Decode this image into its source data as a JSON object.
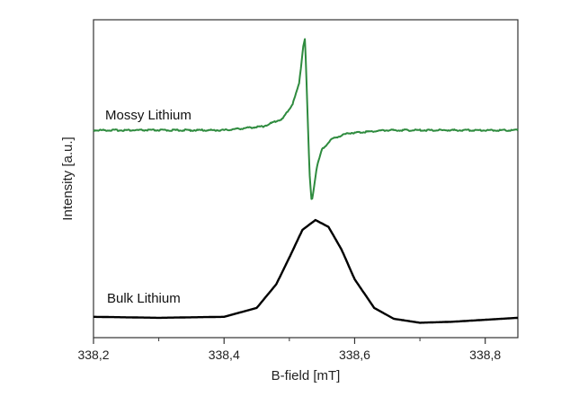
{
  "chart_data": {
    "type": "line",
    "title": "",
    "xlabel": "B-field [mT]",
    "ylabel": "Intensity [a.u.]",
    "xlim": [
      338.2,
      338.85
    ],
    "x_ticks": [
      338.2,
      338.4,
      338.6,
      338.8
    ],
    "x_tick_labels": [
      "338,2",
      "338,4",
      "338,6",
      "338,8"
    ],
    "y_ticks_shown": false,
    "grid": false,
    "legend": "none (series labelled directly on the plot)",
    "series": [
      {
        "name": "Mossy Lithium",
        "color": "#2e8b3e",
        "x": [
          338.2,
          338.3,
          338.4,
          338.46,
          338.49,
          338.505,
          338.515,
          338.521,
          338.524,
          338.527,
          338.531,
          338.534,
          338.537,
          338.542,
          338.55,
          338.565,
          338.59,
          338.65,
          338.75,
          338.85
        ],
        "y": [
          0,
          0,
          0,
          0.04,
          0.12,
          0.27,
          0.48,
          0.86,
          0.95,
          0.35,
          -0.45,
          -0.74,
          -0.62,
          -0.38,
          -0.2,
          -0.09,
          -0.03,
          0,
          0,
          0
        ]
      },
      {
        "name": "Bulk Lithium",
        "color": "#000000",
        "x": [
          338.2,
          338.3,
          338.4,
          338.45,
          338.48,
          338.5,
          338.52,
          338.54,
          338.56,
          338.58,
          338.6,
          338.63,
          338.66,
          338.7,
          338.75,
          338.8,
          338.85
        ],
        "y": [
          0.02,
          0.01,
          0.02,
          0.11,
          0.35,
          0.62,
          0.9,
          1.0,
          0.93,
          0.7,
          0.4,
          0.11,
          0.0,
          -0.04,
          -0.03,
          -0.01,
          0.01
        ]
      }
    ]
  }
}
